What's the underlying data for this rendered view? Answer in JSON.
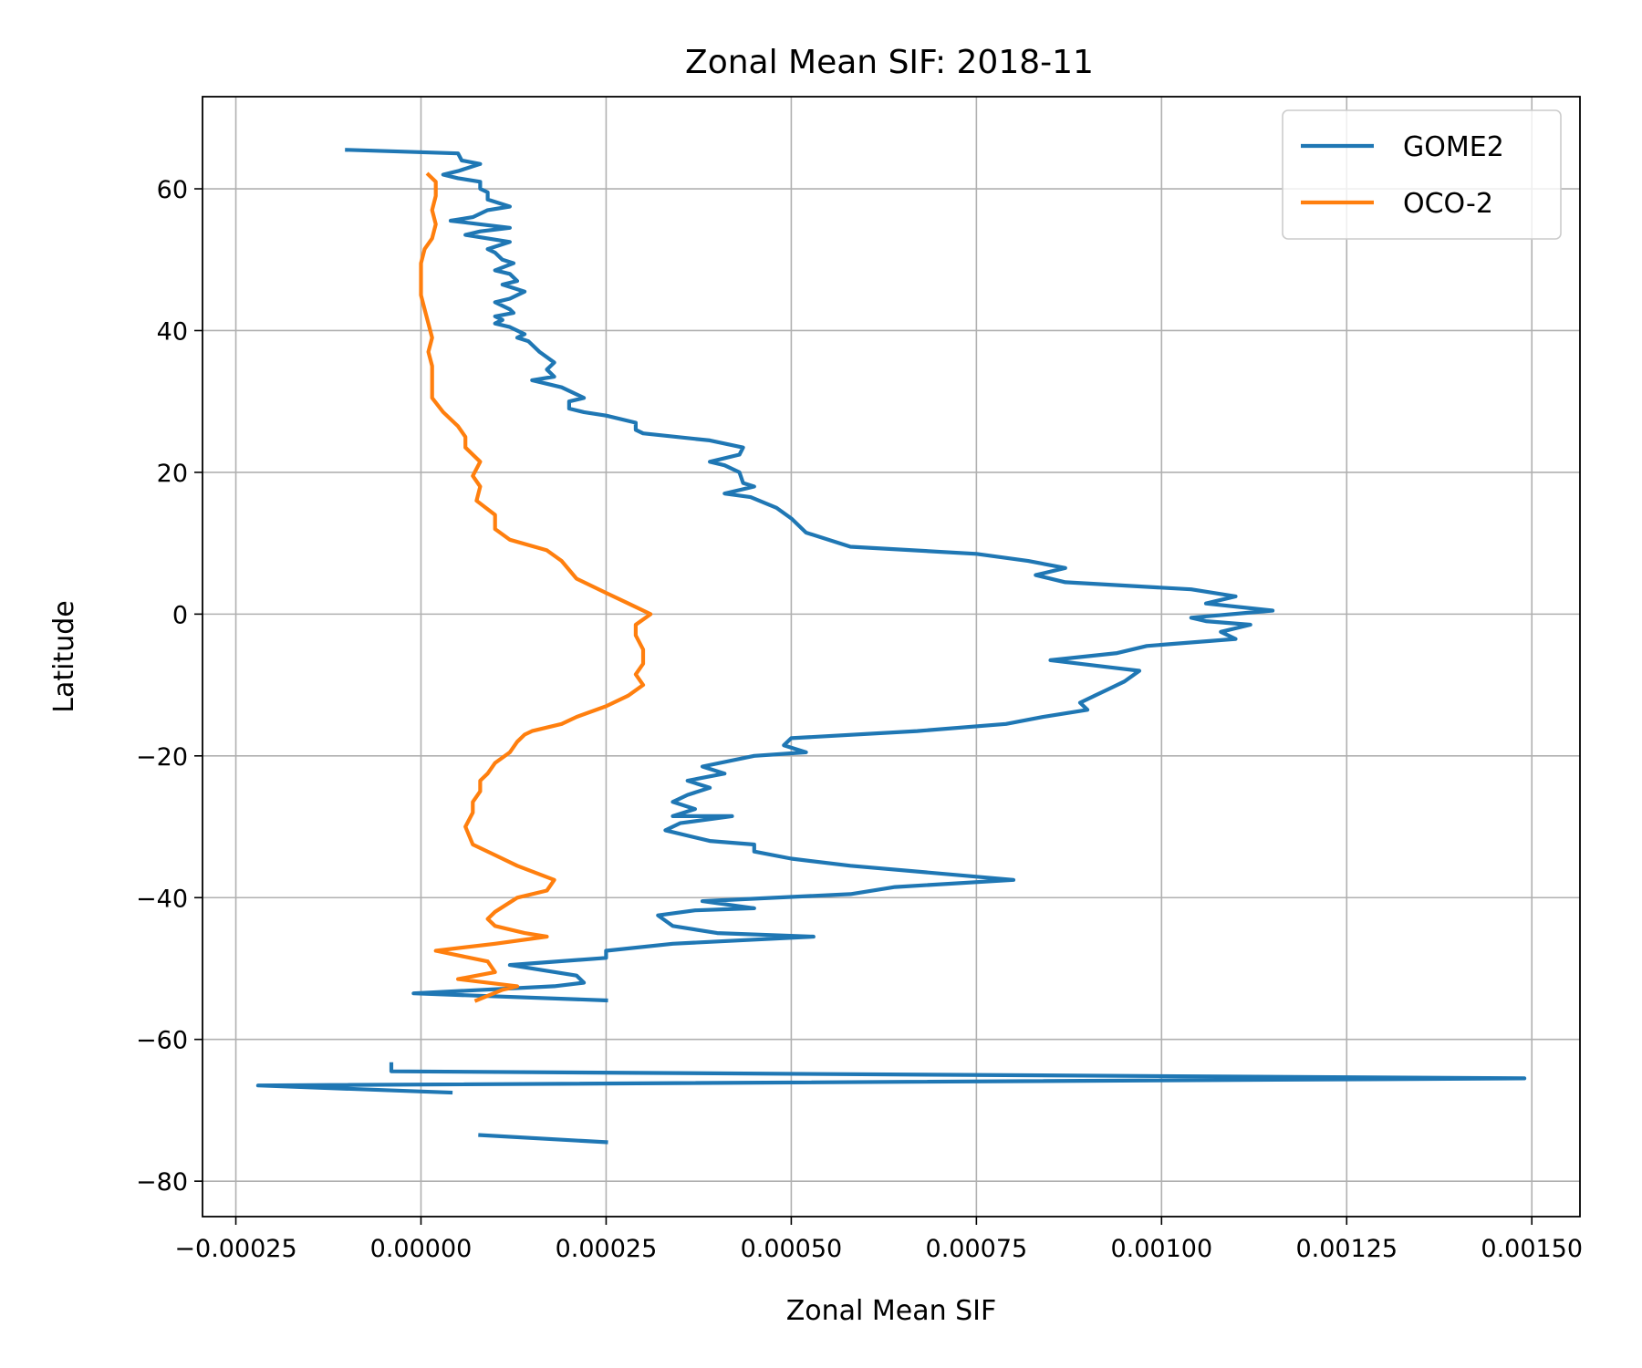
{
  "chart_data": {
    "type": "line",
    "title": "Zonal Mean SIF: 2018-11",
    "xlabel": "Zonal Mean SIF",
    "ylabel": "Latitude",
    "xlim": [
      -0.000295,
      0.001565
    ],
    "ylim": [
      -85,
      73
    ],
    "grid": true,
    "legend_position": "upper right",
    "x_ticks": [
      -0.00025,
      0.0,
      0.00025,
      0.0005,
      0.00075,
      0.001,
      0.00125,
      0.0015
    ],
    "x_tick_labels": [
      "−0.00025",
      "0.00000",
      "0.00025",
      "0.00050",
      "0.00075",
      "0.00100",
      "0.00125",
      "0.00150"
    ],
    "y_ticks": [
      -80,
      -60,
      -40,
      -20,
      0,
      20,
      40,
      60
    ],
    "y_tick_labels": [
      "−80",
      "−60",
      "−40",
      "−20",
      "0",
      "20",
      "40",
      "60"
    ],
    "series": [
      {
        "name": "GOME2",
        "color": "#1f77b4",
        "segments": [
          [
            [
              -0.0001,
              65.5
            ],
            [
              5e-05,
              65.0
            ],
            [
              5.5e-05,
              64.0
            ],
            [
              8e-05,
              63.5
            ],
            [
              5e-05,
              62.5
            ],
            [
              3e-05,
              62.0
            ],
            [
              5e-05,
              61.5
            ],
            [
              8e-05,
              61.0
            ],
            [
              8e-05,
              60.0
            ],
            [
              9e-05,
              59.5
            ],
            [
              9e-05,
              58.5
            ],
            [
              0.00012,
              57.5
            ],
            [
              9e-05,
              57.0
            ],
            [
              7e-05,
              56.0
            ],
            [
              4e-05,
              55.5
            ],
            [
              8e-05,
              55.0
            ],
            [
              0.00012,
              54.5
            ],
            [
              8e-05,
              54.0
            ],
            [
              6e-05,
              53.5
            ],
            [
              9e-05,
              53.0
            ],
            [
              0.00012,
              52.5
            ],
            [
              9e-05,
              51.5
            ],
            [
              0.0001,
              51.0
            ],
            [
              0.00011,
              50.0
            ],
            [
              0.000125,
              49.5
            ],
            [
              0.0001,
              48.5
            ],
            [
              0.00012,
              48.0
            ],
            [
              0.00013,
              47.0
            ],
            [
              0.00011,
              46.5
            ],
            [
              0.00014,
              45.5
            ],
            [
              0.00012,
              44.5
            ],
            [
              0.0001,
              44.0
            ],
            [
              0.00012,
              43.0
            ],
            [
              0.000125,
              42.5
            ],
            [
              0.0001,
              42.0
            ],
            [
              0.00011,
              41.5
            ],
            [
              0.0001,
              41.0
            ],
            [
              0.00012,
              40.5
            ],
            [
              0.00014,
              39.5
            ],
            [
              0.00013,
              39.0
            ],
            [
              0.000145,
              38.5
            ],
            [
              0.00016,
              37.0
            ],
            [
              0.00018,
              35.5
            ],
            [
              0.00017,
              34.5
            ],
            [
              0.00018,
              33.5
            ],
            [
              0.00015,
              33.0
            ],
            [
              0.00019,
              32.0
            ],
            [
              0.00022,
              30.5
            ],
            [
              0.0002,
              30.0
            ],
            [
              0.0002,
              29.0
            ],
            [
              0.00022,
              28.5
            ],
            [
              0.00025,
              28.0
            ],
            [
              0.00029,
              27.0
            ],
            [
              0.00029,
              26.0
            ],
            [
              0.0003,
              25.5
            ],
            [
              0.00039,
              24.5
            ],
            [
              0.000435,
              23.5
            ],
            [
              0.00043,
              22.5
            ],
            [
              0.00039,
              21.5
            ],
            [
              0.00041,
              21.0
            ],
            [
              0.00043,
              20.0
            ],
            [
              0.000435,
              18.5
            ],
            [
              0.00045,
              18.0
            ],
            [
              0.00041,
              17.0
            ],
            [
              0.000445,
              16.5
            ],
            [
              0.00048,
              15.0
            ],
            [
              0.0005,
              13.5
            ],
            [
              0.00052,
              11.5
            ],
            [
              0.00058,
              9.5
            ],
            [
              0.00075,
              8.5
            ],
            [
              0.00082,
              7.5
            ],
            [
              0.00087,
              6.5
            ],
            [
              0.00083,
              5.5
            ],
            [
              0.00087,
              4.5
            ],
            [
              0.00104,
              3.5
            ],
            [
              0.0011,
              2.5
            ],
            [
              0.00106,
              1.5
            ],
            [
              0.00115,
              0.5
            ],
            [
              0.00104,
              -0.5
            ],
            [
              0.00106,
              -1.0
            ],
            [
              0.00112,
              -1.5
            ],
            [
              0.00108,
              -2.5
            ],
            [
              0.0011,
              -3.5
            ],
            [
              0.00098,
              -4.5
            ],
            [
              0.00094,
              -5.5
            ],
            [
              0.00085,
              -6.5
            ],
            [
              0.00093,
              -7.5
            ],
            [
              0.00097,
              -8.0
            ],
            [
              0.00095,
              -9.5
            ],
            [
              0.00093,
              -10.5
            ],
            [
              0.00091,
              -11.5
            ],
            [
              0.00089,
              -12.5
            ],
            [
              0.0009,
              -13.5
            ],
            [
              0.00084,
              -14.5
            ],
            [
              0.00079,
              -15.5
            ],
            [
              0.00067,
              -16.5
            ],
            [
              0.0005,
              -17.5
            ],
            [
              0.00049,
              -18.5
            ],
            [
              0.00052,
              -19.5
            ],
            [
              0.00045,
              -20.0
            ],
            [
              0.00038,
              -21.5
            ],
            [
              0.00041,
              -22.5
            ],
            [
              0.00036,
              -23.5
            ],
            [
              0.00039,
              -24.5
            ],
            [
              0.00036,
              -25.5
            ],
            [
              0.00034,
              -26.5
            ],
            [
              0.00037,
              -27.5
            ],
            [
              0.00034,
              -28.5
            ],
            [
              0.00042,
              -28.5
            ],
            [
              0.00035,
              -29.5
            ],
            [
              0.00033,
              -30.5
            ],
            [
              0.00039,
              -32.0
            ],
            [
              0.00045,
              -32.5
            ],
            [
              0.00045,
              -33.5
            ],
            [
              0.0005,
              -34.5
            ],
            [
              0.00058,
              -35.5
            ],
            [
              0.0008,
              -37.5
            ],
            [
              0.00064,
              -38.5
            ],
            [
              0.00058,
              -39.5
            ],
            [
              0.00038,
              -40.5
            ],
            [
              0.00045,
              -41.5
            ],
            [
              0.00037,
              -41.8
            ],
            [
              0.00032,
              -42.5
            ],
            [
              0.00034,
              -44.0
            ],
            [
              0.0004,
              -45.0
            ],
            [
              0.00053,
              -45.5
            ],
            [
              0.00034,
              -46.5
            ],
            [
              0.00025,
              -47.5
            ],
            [
              0.00025,
              -48.5
            ],
            [
              0.00012,
              -49.5
            ],
            [
              0.00021,
              -51.0
            ],
            [
              0.00022,
              -52.0
            ],
            [
              0.00018,
              -52.5
            ],
            [
              -1e-05,
              -53.5
            ],
            [
              0.00025,
              -54.5
            ]
          ],
          [
            [
              -4e-05,
              -63.5
            ],
            [
              -4e-05,
              -64.5
            ],
            [
              0.00149,
              -65.5
            ],
            [
              -0.00022,
              -66.5
            ],
            [
              4e-05,
              -67.5
            ]
          ],
          [
            [
              8e-05,
              -73.5
            ],
            [
              0.00025,
              -74.5
            ]
          ]
        ]
      },
      {
        "name": "OCO-2",
        "color": "#ff7f0e",
        "segments": [
          [
            [
              1e-05,
              62.0
            ],
            [
              2e-05,
              61.0
            ],
            [
              2e-05,
              59.0
            ],
            [
              1.5e-05,
              57.0
            ],
            [
              2e-05,
              55.0
            ],
            [
              1.5e-05,
              53.0
            ],
            [
              5e-06,
              51.5
            ],
            [
              0.0,
              49.5
            ],
            [
              0.0,
              47.0
            ],
            [
              0.0,
              45.0
            ],
            [
              5e-06,
              43.0
            ],
            [
              1e-05,
              41.0
            ],
            [
              1.5e-05,
              39.0
            ],
            [
              1e-05,
              37.0
            ],
            [
              1.5e-05,
              35.0
            ],
            [
              1.5e-05,
              32.5
            ],
            [
              1.5e-05,
              30.5
            ],
            [
              3e-05,
              28.5
            ],
            [
              5e-05,
              26.5
            ],
            [
              6e-05,
              25.0
            ],
            [
              6e-05,
              23.5
            ],
            [
              8e-05,
              21.5
            ],
            [
              7e-05,
              19.5
            ],
            [
              8e-05,
              18.0
            ],
            [
              7.5e-05,
              16.0
            ],
            [
              0.0001,
              14.0
            ],
            [
              0.0001,
              12.0
            ],
            [
              0.00012,
              10.5
            ],
            [
              0.00017,
              9.0
            ],
            [
              0.00019,
              7.5
            ],
            [
              0.00021,
              5.0
            ],
            [
              0.00025,
              3.0
            ],
            [
              0.00028,
              1.5
            ],
            [
              0.00031,
              0.0
            ],
            [
              0.00029,
              -1.5
            ],
            [
              0.00029,
              -3.0
            ],
            [
              0.0003,
              -5.0
            ],
            [
              0.0003,
              -7.0
            ],
            [
              0.00029,
              -8.5
            ],
            [
              0.0003,
              -10.0
            ],
            [
              0.00028,
              -11.5
            ],
            [
              0.00025,
              -13.0
            ],
            [
              0.00021,
              -14.5
            ],
            [
              0.00019,
              -15.5
            ],
            [
              0.00015,
              -16.5
            ],
            [
              0.00014,
              -17.0
            ],
            [
              0.00013,
              -18.0
            ],
            [
              0.00012,
              -19.5
            ],
            [
              0.0001,
              -21.0
            ],
            [
              9e-05,
              -22.5
            ],
            [
              8e-05,
              -23.5
            ],
            [
              8e-05,
              -25.0
            ],
            [
              7e-05,
              -26.5
            ],
            [
              7e-05,
              -28.0
            ],
            [
              6e-05,
              -30.0
            ],
            [
              7e-05,
              -32.5
            ],
            [
              0.0001,
              -34.0
            ],
            [
              0.00013,
              -35.5
            ],
            [
              0.00018,
              -37.5
            ],
            [
              0.00017,
              -39.0
            ],
            [
              0.00013,
              -40.0
            ],
            [
              0.0001,
              -42.0
            ],
            [
              9e-05,
              -43.0
            ],
            [
              0.0001,
              -44.0
            ],
            [
              0.00014,
              -45.0
            ],
            [
              0.00017,
              -45.5
            ],
            [
              0.0001,
              -46.5
            ],
            [
              2e-05,
              -47.5
            ],
            [
              9e-05,
              -49.0
            ],
            [
              0.0001,
              -50.5
            ],
            [
              5e-05,
              -51.5
            ],
            [
              0.00013,
              -52.5
            ],
            [
              0.00011,
              -53.0
            ],
            [
              7.5e-05,
              -54.5
            ]
          ]
        ]
      }
    ]
  }
}
